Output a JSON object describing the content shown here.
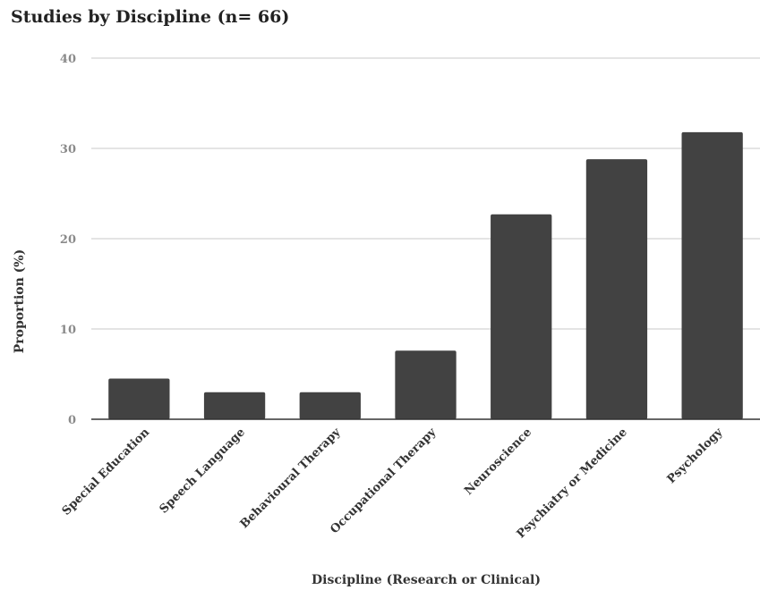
{
  "chart_data": {
    "type": "bar",
    "title": "Studies by Discipline (n= 66)",
    "xlabel": "Discipline (Research or Clinical)",
    "ylabel": "Proportion (%)",
    "ylim": [
      0,
      40
    ],
    "yticks": [
      "0",
      "10",
      "20",
      "30",
      "40"
    ],
    "grid": true,
    "categories": [
      "Special Education",
      "Speech Language",
      "Behavioural Therapy",
      "Occupational Therapy",
      "Neuroscience",
      "Psychiatry or Medicine",
      "Psychology"
    ],
    "values": [
      4.5,
      3.0,
      3.0,
      7.6,
      22.7,
      28.8,
      31.8
    ],
    "colors": {
      "bar": "#424242",
      "grid": "#c8c8c8",
      "axis": "#333333"
    }
  }
}
